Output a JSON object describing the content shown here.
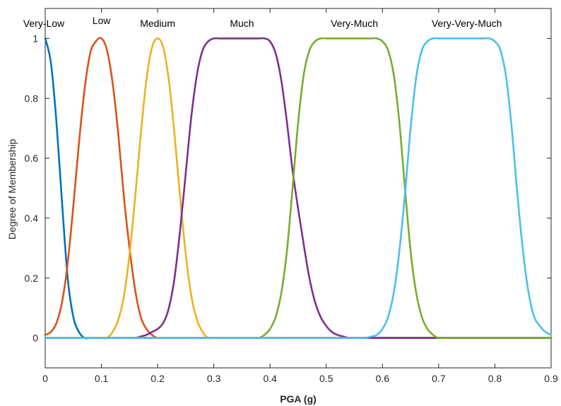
{
  "chart_data": {
    "type": "line",
    "title": "",
    "xlabel": "PGA (g)",
    "ylabel": "Degree of Membership",
    "xlim": [
      0,
      0.9
    ],
    "ylim": [
      -0.1,
      1.1
    ],
    "grid": false,
    "legend": "none",
    "x_ticks": [
      0,
      0.1,
      0.2,
      0.3,
      0.4,
      0.5,
      0.6,
      0.7,
      0.8,
      0.9
    ],
    "x_tick_labels": [
      "0",
      "0.1",
      "0.2",
      "0.3",
      "0.4",
      "0.5",
      "0.6",
      "0.7",
      "0.8",
      "0.9"
    ],
    "y_ticks": [
      0,
      0.2,
      0.4,
      0.6,
      0.8,
      1
    ],
    "y_tick_labels": [
      "0",
      "0.2",
      "0.4",
      "0.6",
      "0.8",
      "1"
    ],
    "x": [
      0,
      0.01,
      0.02,
      0.03,
      0.04,
      0.05,
      0.06,
      0.07,
      0.08,
      0.09,
      0.1,
      0.11,
      0.12,
      0.13,
      0.14,
      0.15,
      0.16,
      0.17,
      0.18,
      0.19,
      0.2,
      0.21,
      0.22,
      0.23,
      0.24,
      0.25,
      0.26,
      0.27,
      0.28,
      0.29,
      0.3,
      0.31,
      0.32,
      0.33,
      0.34,
      0.35,
      0.36,
      0.37,
      0.38,
      0.39,
      0.4,
      0.41,
      0.42,
      0.43,
      0.44,
      0.45,
      0.46,
      0.47,
      0.48,
      0.49,
      0.5,
      0.51,
      0.52,
      0.53,
      0.54,
      0.55,
      0.56,
      0.57,
      0.58,
      0.59,
      0.6,
      0.61,
      0.62,
      0.63,
      0.64,
      0.65,
      0.66,
      0.67,
      0.68,
      0.69,
      0.7,
      0.71,
      0.72,
      0.73,
      0.74,
      0.75,
      0.76,
      0.77,
      0.78,
      0.79,
      0.8,
      0.81,
      0.82,
      0.83,
      0.84,
      0.85,
      0.86,
      0.87,
      0.88,
      0.89,
      0.9
    ],
    "series": [
      {
        "name": "Very-Low",
        "color": "#0072BD",
        "values": [
          1,
          0.92,
          0.72,
          0.45,
          0.2,
          0.07,
          0.02,
          0,
          0,
          0,
          0,
          0,
          0,
          0,
          0,
          0,
          0,
          0,
          0,
          0,
          0,
          0,
          0,
          0,
          0,
          0,
          0,
          0,
          0,
          0,
          0,
          0,
          0,
          0,
          0,
          0,
          0,
          0,
          0,
          0,
          0,
          0,
          0,
          0,
          0,
          0,
          0,
          0,
          0,
          0,
          0,
          0,
          0,
          0,
          0,
          0,
          0,
          0,
          0,
          0,
          0,
          0,
          0,
          0,
          0,
          0,
          0,
          0,
          0,
          0,
          0,
          0,
          0,
          0,
          0,
          0,
          0,
          0,
          0,
          0,
          0,
          0,
          0,
          0,
          0,
          0,
          0,
          0,
          0,
          0,
          0
        ]
      },
      {
        "name": "Low",
        "color": "#D95319",
        "values": [
          0.01,
          0.02,
          0.05,
          0.12,
          0.25,
          0.44,
          0.65,
          0.83,
          0.95,
          0.99,
          1,
          0.96,
          0.85,
          0.68,
          0.47,
          0.3,
          0.16,
          0.07,
          0.03,
          0.01,
          0,
          0,
          0,
          0,
          0,
          0,
          0,
          0,
          0,
          0,
          0,
          0,
          0,
          0,
          0,
          0,
          0,
          0,
          0,
          0,
          0,
          0,
          0,
          0,
          0,
          0,
          0,
          0,
          0,
          0,
          0,
          0,
          0,
          0,
          0,
          0,
          0,
          0,
          0,
          0,
          0,
          0,
          0,
          0,
          0,
          0,
          0,
          0,
          0,
          0,
          0,
          0,
          0,
          0,
          0,
          0,
          0,
          0,
          0,
          0,
          0,
          0,
          0,
          0,
          0,
          0,
          0,
          0,
          0,
          0,
          0
        ]
      },
      {
        "name": "Medium",
        "color": "#EDB120",
        "values": [
          0,
          0,
          0,
          0,
          0,
          0,
          0,
          0,
          0,
          0,
          0,
          0,
          0.02,
          0.06,
          0.14,
          0.28,
          0.47,
          0.68,
          0.86,
          0.97,
          1,
          0.97,
          0.86,
          0.68,
          0.47,
          0.28,
          0.14,
          0.06,
          0.02,
          0,
          0,
          0,
          0,
          0,
          0,
          0,
          0,
          0,
          0,
          0,
          0,
          0,
          0,
          0,
          0,
          0,
          0,
          0,
          0,
          0,
          0,
          0,
          0,
          0,
          0,
          0,
          0,
          0,
          0,
          0,
          0,
          0,
          0,
          0,
          0,
          0,
          0,
          0,
          0,
          0,
          0,
          0,
          0,
          0,
          0,
          0,
          0,
          0,
          0,
          0,
          0,
          0,
          0,
          0,
          0,
          0,
          0,
          0,
          0,
          0,
          0
        ]
      },
      {
        "name": "Much",
        "color": "#7E2F8E",
        "values": [
          0,
          0,
          0,
          0,
          0,
          0,
          0,
          0,
          0,
          0,
          0,
          0,
          0,
          0,
          0,
          0,
          0,
          0.005,
          0.01,
          0.02,
          0.03,
          0.05,
          0.1,
          0.2,
          0.36,
          0.55,
          0.74,
          0.88,
          0.96,
          0.99,
          1,
          1,
          1,
          1,
          1,
          1,
          1,
          1,
          1,
          1,
          0.99,
          0.95,
          0.86,
          0.72,
          0.56,
          0.43,
          0.31,
          0.2,
          0.12,
          0.07,
          0.04,
          0.02,
          0.01,
          0.005,
          0,
          0,
          0,
          0,
          0,
          0,
          0,
          0,
          0,
          0,
          0,
          0,
          0,
          0,
          0,
          0,
          0,
          0,
          0,
          0,
          0,
          0,
          0,
          0,
          0,
          0,
          0,
          0,
          0,
          0,
          0,
          0,
          0,
          0,
          0,
          0,
          0
        ]
      },
      {
        "name": "Very-Much",
        "color": "#77AC30",
        "values": [
          0,
          0,
          0,
          0,
          0,
          0,
          0,
          0,
          0,
          0,
          0,
          0,
          0,
          0,
          0,
          0,
          0,
          0,
          0,
          0,
          0,
          0,
          0,
          0,
          0,
          0,
          0,
          0,
          0,
          0,
          0,
          0,
          0,
          0,
          0,
          0,
          0,
          0,
          0,
          0.01,
          0.03,
          0.07,
          0.15,
          0.29,
          0.5,
          0.72,
          0.88,
          0.96,
          0.99,
          1,
          1,
          1,
          1,
          1,
          1,
          1,
          1,
          1,
          1,
          1,
          0.99,
          0.96,
          0.88,
          0.72,
          0.5,
          0.29,
          0.15,
          0.07,
          0.03,
          0.01,
          0,
          0,
          0,
          0,
          0,
          0,
          0,
          0,
          0,
          0,
          0,
          0,
          0,
          0,
          0,
          0,
          0,
          0,
          0,
          0,
          0
        ]
      },
      {
        "name": "Very-Very-Much",
        "color": "#4DBEEE",
        "values": [
          0,
          0,
          0,
          0,
          0,
          0,
          0,
          0,
          0,
          0,
          0,
          0,
          0,
          0,
          0,
          0,
          0,
          0,
          0,
          0,
          0,
          0,
          0,
          0,
          0,
          0,
          0,
          0,
          0,
          0,
          0,
          0,
          0,
          0,
          0,
          0,
          0,
          0,
          0,
          0,
          0,
          0,
          0,
          0,
          0,
          0,
          0,
          0,
          0,
          0,
          0,
          0,
          0,
          0,
          0,
          0,
          0,
          0,
          0.005,
          0.01,
          0.03,
          0.07,
          0.15,
          0.29,
          0.48,
          0.7,
          0.87,
          0.96,
          0.99,
          1,
          1,
          1,
          1,
          1,
          1,
          1,
          1,
          1,
          1,
          1,
          0.99,
          0.96,
          0.87,
          0.7,
          0.48,
          0.29,
          0.15,
          0.07,
          0.04,
          0.02,
          0.01
        ]
      }
    ],
    "annotations": [
      {
        "text": "Very-Low",
        "x": 0,
        "y": 1.05
      },
      {
        "text": "Low",
        "x": 0.1,
        "y": 1.06
      },
      {
        "text": "Medium",
        "x": 0.2,
        "y": 1.05
      },
      {
        "text": "Much",
        "x": 0.35,
        "y": 1.05
      },
      {
        "text": "Very-Much",
        "x": 0.55,
        "y": 1.05
      },
      {
        "text": "Very-Very-Much",
        "x": 0.75,
        "y": 1.05
      }
    ]
  }
}
